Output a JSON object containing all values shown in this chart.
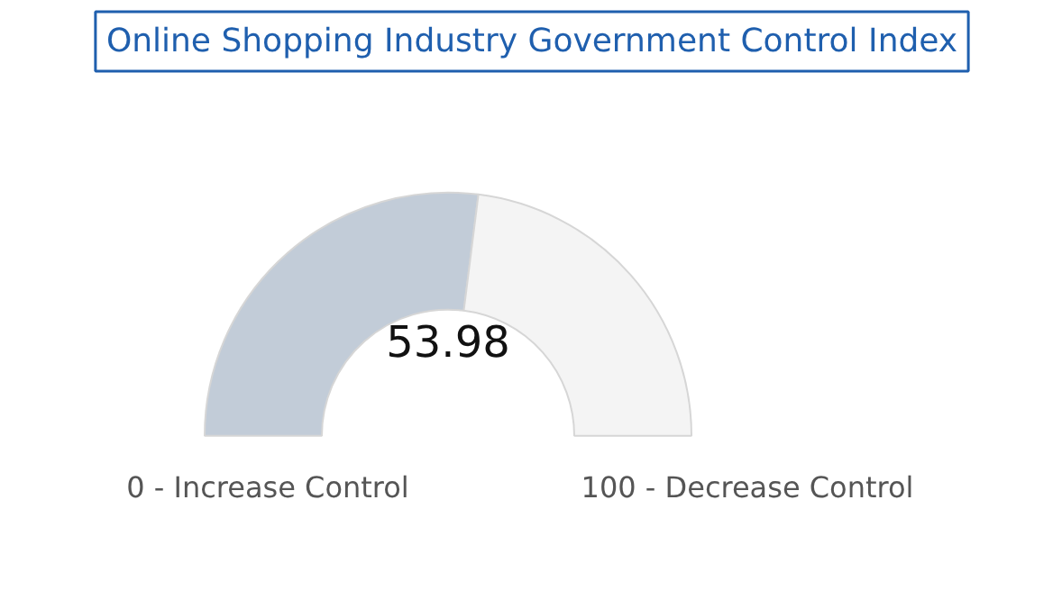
{
  "chart_data": {
    "type": "donut",
    "title": "Online Shopping Industry Government Control Index",
    "categories": [
      null,
      null
    ],
    "values": [
      53.98,
      46.02
    ],
    "colors": [
      "#c2ccd8",
      "#f4f4f4"
    ],
    "value_labels": [
      "53.98",
      null
    ],
    "annotations": [
      "0 - Increase Control",
      "100 - Decrease Control"
    ]
  }
}
